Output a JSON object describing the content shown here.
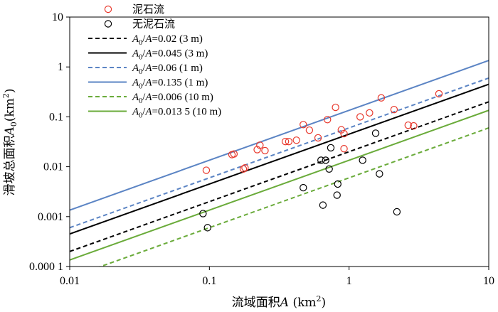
{
  "chart_data": {
    "type": "scatter",
    "x_scale": "log",
    "y_scale": "log",
    "xlim": [
      0.01,
      10
    ],
    "ylim": [
      0.0001,
      10
    ],
    "x_ticks": [
      "0.01",
      "0.1",
      "1",
      "10"
    ],
    "y_ticks": [
      "0.000 1",
      "0.001",
      "0.01",
      "0.1",
      "1",
      "10"
    ],
    "xlabel": {
      "prefix": "流域面积",
      "var": "A",
      "unit": " (km",
      "sup": "2",
      "close": ")"
    },
    "ylabel": {
      "prefix": "滑坡总面积",
      "var": "A",
      "sub": "0",
      "unit": "(km",
      "sup": "2",
      "close": ")"
    },
    "grid": false,
    "legend_position": "top-left",
    "series": [
      {
        "name": "泥石流",
        "kind": "scatter",
        "color": "#e8372b",
        "points": [
          [
            0.095,
            0.0085
          ],
          [
            0.145,
            0.0175
          ],
          [
            0.15,
            0.018
          ],
          [
            0.175,
            0.009
          ],
          [
            0.18,
            0.0095
          ],
          [
            0.22,
            0.022
          ],
          [
            0.23,
            0.027
          ],
          [
            0.25,
            0.021
          ],
          [
            0.35,
            0.032
          ],
          [
            0.37,
            0.032
          ],
          [
            0.42,
            0.034
          ],
          [
            0.47,
            0.07
          ],
          [
            0.52,
            0.054
          ],
          [
            0.6,
            0.038
          ],
          [
            0.7,
            0.088
          ],
          [
            0.8,
            0.155
          ],
          [
            0.88,
            0.055
          ],
          [
            0.92,
            0.046
          ],
          [
            0.92,
            0.023
          ],
          [
            1.2,
            0.1
          ],
          [
            1.4,
            0.12
          ],
          [
            1.7,
            0.24
          ],
          [
            2.1,
            0.14
          ],
          [
            2.65,
            0.068
          ],
          [
            2.9,
            0.066
          ],
          [
            4.4,
            0.29
          ]
        ]
      },
      {
        "name": "无泥石流",
        "kind": "scatter",
        "color": "#000000",
        "points": [
          [
            0.09,
            0.00115
          ],
          [
            0.097,
            0.0006
          ],
          [
            0.47,
            0.0038
          ],
          [
            0.63,
            0.0135
          ],
          [
            0.65,
            0.0017
          ],
          [
            0.68,
            0.0135
          ],
          [
            0.72,
            0.009
          ],
          [
            0.74,
            0.024
          ],
          [
            0.82,
            0.0027
          ],
          [
            0.83,
            0.0045
          ],
          [
            1.25,
            0.0135
          ],
          [
            1.55,
            0.047
          ],
          [
            1.65,
            0.0072
          ],
          [
            2.2,
            0.00125
          ]
        ]
      },
      {
        "name": "A0/A=0.02 (3 m)",
        "kind": "line",
        "ratio": 0.02,
        "color": "#000000",
        "dash": true,
        "label": {
          "var": "A",
          "sub": "0",
          "rest": "/",
          "var2": "A",
          "value": "=0.02 (3 m)"
        }
      },
      {
        "name": "A0/A=0.045 (3 m)",
        "kind": "line",
        "ratio": 0.045,
        "color": "#000000",
        "dash": false,
        "label": {
          "var": "A",
          "sub": "0",
          "rest": "/",
          "var2": "A",
          "value": "=0.045 (3 m)"
        }
      },
      {
        "name": "A0/A=0.06 (1 m)",
        "kind": "line",
        "ratio": 0.06,
        "color": "#5b84c4",
        "dash": true,
        "label": {
          "var": "A",
          "sub": "0",
          "rest": "/",
          "var2": "A",
          "value": "=0.06 (1 m)"
        }
      },
      {
        "name": "A0/A=0.135 (1 m)",
        "kind": "line",
        "ratio": 0.135,
        "color": "#5b84c4",
        "dash": false,
        "label": {
          "var": "A",
          "sub": "0",
          "rest": "/",
          "var2": "A",
          "value": "=0.135 (1 m)"
        }
      },
      {
        "name": "A0/A=0.006 (10 m)",
        "kind": "line",
        "ratio": 0.006,
        "color": "#6aab3a",
        "dash": true,
        "label": {
          "var": "A",
          "sub": "0",
          "rest": "/",
          "var2": "A",
          "value": "=0.006 (10 m)"
        }
      },
      {
        "name": "A0/A=0.013 5 (10 m)",
        "kind": "line",
        "ratio": 0.0135,
        "color": "#6aab3a",
        "dash": false,
        "label": {
          "var": "A",
          "sub": "0",
          "rest": "/",
          "var2": "A",
          "value": "=0.013 5 (10 m)"
        }
      }
    ]
  }
}
